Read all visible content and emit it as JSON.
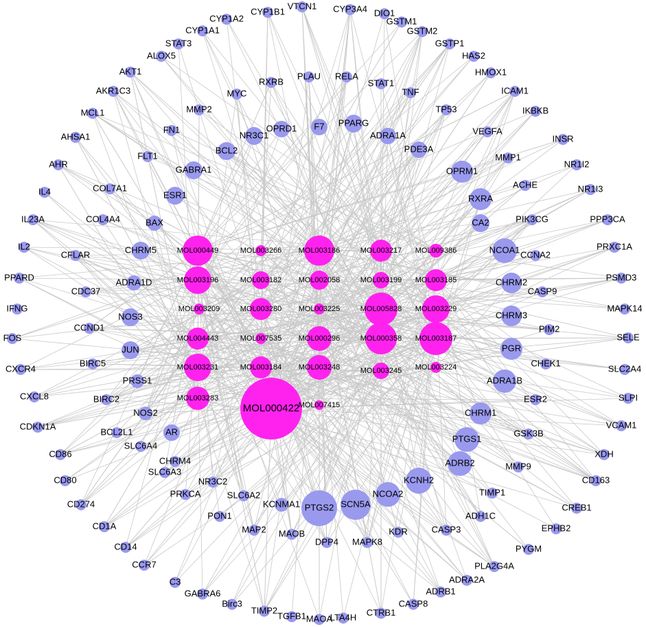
{
  "compounds": [
    "MOL000449",
    "MOL003266",
    "MOL003186",
    "MOL003217",
    "MOL009386",
    "MOL003196",
    "MOL003182",
    "MOL002058",
    "MOL003199",
    "MOL003185",
    "MOL003209",
    "MOL003280",
    "MOL003225",
    "MOL005828",
    "MOL003229",
    "MOL004443",
    "MOL007535",
    "MOL000296",
    "MOL000358",
    "MOL003187",
    "MOL003231",
    "MOL003184",
    "MOL003248",
    "MOL003245",
    "MOL003224",
    "MOL003283",
    "MOL000422",
    "MOL007415"
  ],
  "targets": [
    "VTCN1",
    "CYP3A4",
    "DIO1",
    "GSTM1",
    "GSTM2",
    "GSTP1",
    "HAS2",
    "HMOX1",
    "ICAM1",
    "IKBKB",
    "INSR",
    "NR1I2",
    "NR1I3",
    "PPP3CA",
    "PRXC1A",
    "PSMD3",
    "MAPK14",
    "SELE",
    "SLC2A4",
    "SLPI",
    "VCAM1",
    "XDH",
    "CD163",
    "CREB1",
    "EPHB2",
    "PYGM",
    "PLA2G4A",
    "ADRA2A",
    "ADRB1",
    "CASP8",
    "CTRB1",
    "LTA4H",
    "MAOA",
    "TGFB1",
    "TIMP2",
    "Birc3",
    "GABRA6",
    "C3",
    "CCR7",
    "CD14",
    "CD1A",
    "CD274",
    "CD80",
    "CD86",
    "CDKN1A",
    "CXCL8",
    "CXCR4",
    "FOS",
    "IFNG",
    "PPARD",
    "IL2",
    "IL23A",
    "IL4",
    "AHR",
    "AHSA1",
    "MCL1",
    "AKR1C3",
    "AKT1",
    "ALOX5",
    "STAT3",
    "CYP1A1",
    "CYP1A2",
    "CYP1B1",
    "PLAU",
    "RELA",
    "STAT1",
    "TNF",
    "TP53",
    "VEGFA",
    "MMP1",
    "ACHE",
    "PIK3CG",
    "CCNA2",
    "CASP9",
    "PIM2",
    "CHEK1",
    "ESR2",
    "GSK3B",
    "MMP9",
    "TIMP1",
    "ADH1C",
    "CASP3",
    "KDR",
    "MAPK8",
    "DPP4",
    "MAOB",
    "MAP2",
    "PON1",
    "PRKCA",
    "SLC6A3",
    "SLC6A4",
    "BCL2L1",
    "BIRC2",
    "BIRC5",
    "CCND1",
    "CDC37",
    "CFLAR",
    "COL4A4",
    "COL7A1",
    "FLT1",
    "FN1",
    "MMP2",
    "MYC",
    "RXRB",
    "F7",
    "PPARG",
    "ADRA1A",
    "PDE3A",
    "OPRM1",
    "RXRA",
    "CA2",
    "NCOA1",
    "CHRM2",
    "CHRM3",
    "PGR",
    "ADRA1B",
    "CHRM1",
    "PTGS1",
    "ADRB2",
    "KCNH2",
    "NCOA2",
    "SCN5A",
    "PTGS2",
    "KCNMA1",
    "SLC6A2",
    "NR3C2",
    "CHRM4",
    "AR",
    "NOS2",
    "PRSS1",
    "JUN",
    "NOS3",
    "ADRA1D",
    "CHRM5",
    "BAX",
    "ESR1",
    "GABRA1",
    "BCL2",
    "NR3C1",
    "OPRD1"
  ]
}
